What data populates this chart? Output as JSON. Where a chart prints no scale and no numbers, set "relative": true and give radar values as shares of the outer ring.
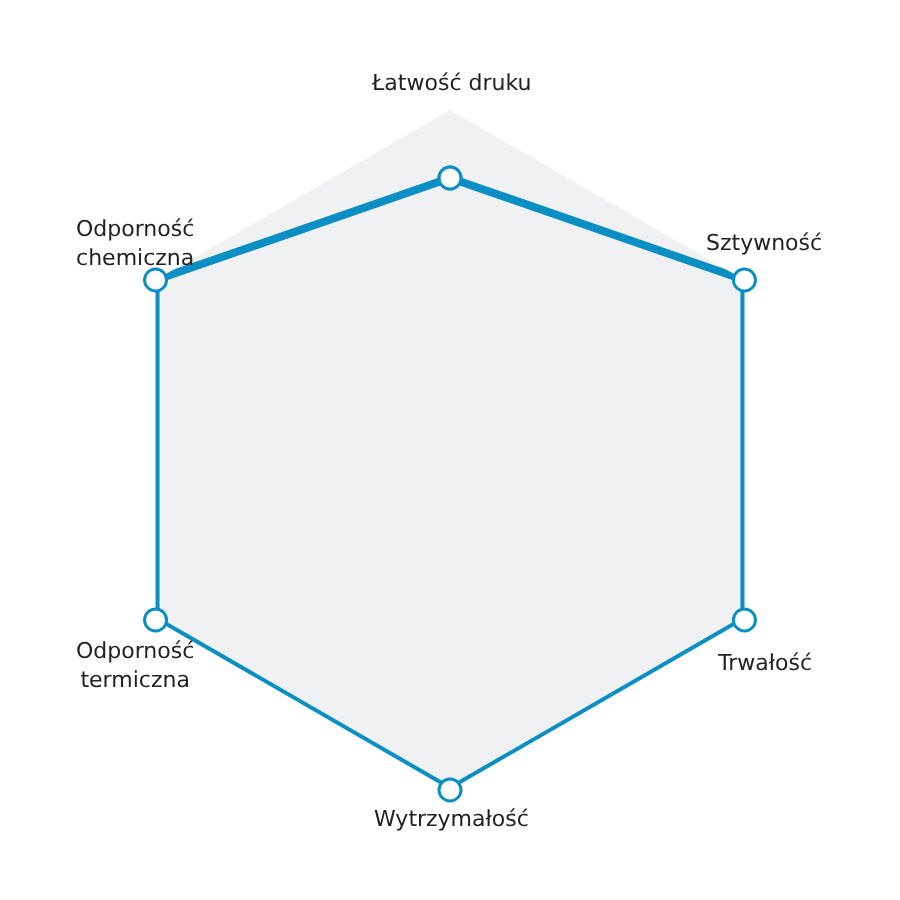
{
  "chart_data": {
    "type": "radar",
    "relative": true,
    "categories": [
      "Łatwość druku",
      "Sztywność",
      "Trwałość",
      "Wytrzymałość",
      "Odporność\ntermiczna",
      "Odporność\nchemiczna"
    ],
    "series": [
      {
        "color": "#0a8fc4",
        "values": [
          0.8,
          1,
          1,
          1,
          1,
          1
        ]
      }
    ],
    "marker": "circle",
    "line_style": "solid"
  }
}
